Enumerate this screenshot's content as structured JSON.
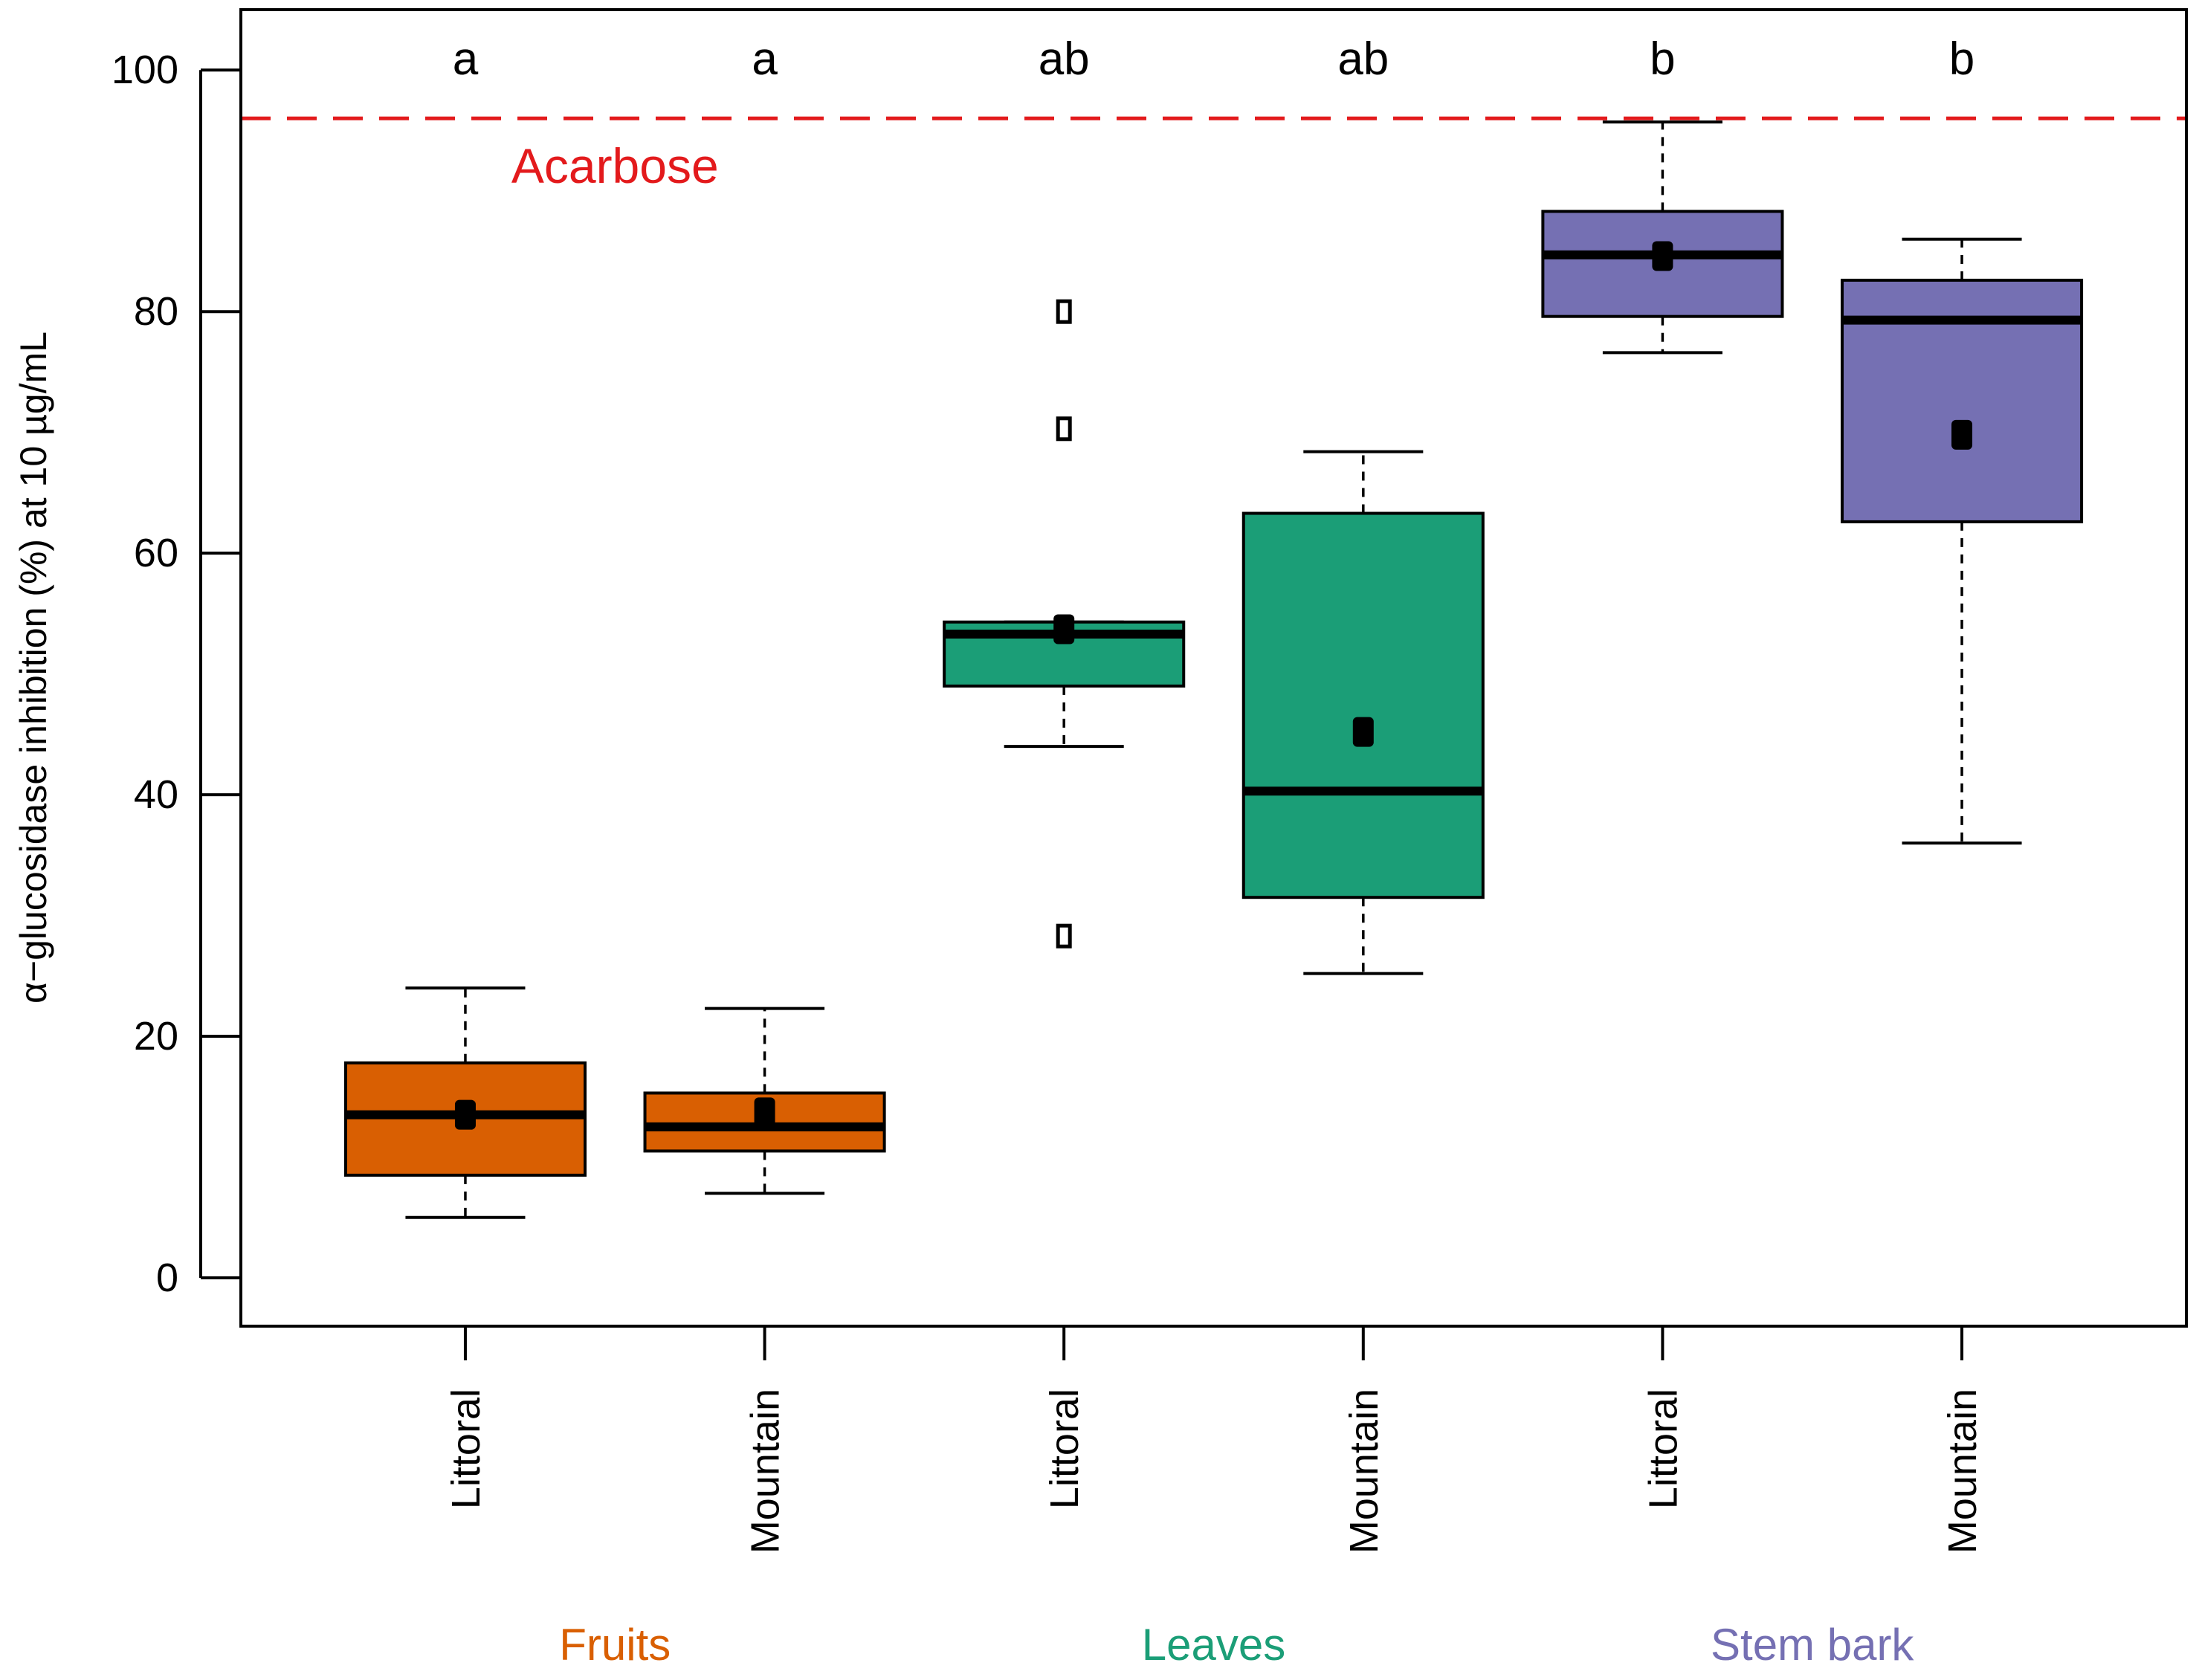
{
  "chart_data": {
    "type": "box",
    "ylabel": "α−glucosidase inhibition (%) at 10 µg/mL",
    "ylim": [
      -4,
      105
    ],
    "yticks": [
      0,
      20,
      40,
      60,
      80,
      100
    ],
    "reference_line": {
      "label": "Acarbose",
      "value": 96,
      "color": "#e31a1c"
    },
    "groups": [
      {
        "name": "Fruits",
        "color": "#d95f02"
      },
      {
        "name": "Leaves",
        "color": "#1b9e77"
      },
      {
        "name": "Stem bark",
        "color": "#7570b3"
      }
    ],
    "boxes": [
      {
        "label": "Littoral",
        "group": 0,
        "sig": "a",
        "min": 5,
        "q1": 8.5,
        "median": 13.5,
        "q3": 17.8,
        "max": 24,
        "mean": 13.5,
        "outliers": []
      },
      {
        "label": "Mountain",
        "group": 0,
        "sig": "a",
        "min": 7,
        "q1": 10.5,
        "median": 12.5,
        "q3": 15.3,
        "max": 22.3,
        "mean": 13.7,
        "outliers": []
      },
      {
        "label": "Littoral",
        "group": 1,
        "sig": "ab",
        "min": 44,
        "q1": 49,
        "median": 53.3,
        "q3": 54.3,
        "max": 54.3,
        "mean": 53.7,
        "outliers": [
          80,
          70.3,
          28.3
        ]
      },
      {
        "label": "Mountain",
        "group": 1,
        "sig": "ab",
        "min": 25.2,
        "q1": 31.5,
        "median": 40.3,
        "q3": 63.3,
        "max": 68.4,
        "mean": 45.2,
        "outliers": []
      },
      {
        "label": "Littoral",
        "group": 2,
        "sig": "b",
        "min": 76.6,
        "q1": 79.6,
        "median": 84.7,
        "q3": 88.3,
        "max": 95.7,
        "mean": 84.6,
        "outliers": []
      },
      {
        "label": "Mountain",
        "group": 2,
        "sig": "b",
        "min": 36,
        "q1": 62.6,
        "median": 79.3,
        "q3": 82.6,
        "max": 86,
        "mean": 69.8,
        "outliers": []
      }
    ]
  }
}
